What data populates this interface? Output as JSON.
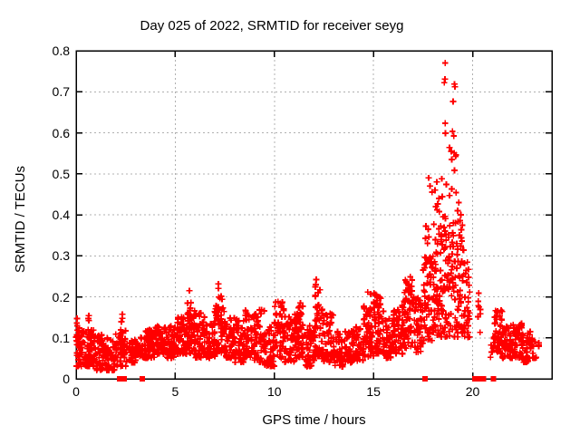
{
  "window": {
    "background": "#ffffff"
  },
  "chart_data": {
    "type": "scatter",
    "title": "Day 025 of 2022, SRMTID for receiver seyg",
    "xlabel": "GPS time / hours",
    "ylabel": "SRMTID / TECUs",
    "xlim": [
      0,
      24
    ],
    "ylim": [
      0,
      0.8
    ],
    "xticks": [
      0,
      5,
      10,
      15,
      20
    ],
    "yticks": [
      0,
      0.1,
      0.2,
      0.3,
      0.4,
      0.5,
      0.6,
      0.7,
      0.8
    ],
    "grid": true,
    "legend_position": "none",
    "marker": "plus",
    "marker_color": "#ff0000",
    "axis_color": "#000000",
    "grid_color": "#b0b0b0",
    "description": "Dense cloud of + markers between ~0.03 and ~0.2 TECUs all day, rising after hour 16 to a large spike peaking ~0.77 near hour 18.6, a sparse gap hours 20-21, and a low tail hours 21-23.4. Square markers sit at zero.",
    "cloud_bins": [
      [
        0.0,
        0.2,
        14,
        0.05,
        0.16,
        1.0
      ],
      [
        0.0,
        0.5,
        52,
        0.03,
        0.13,
        1.5
      ],
      [
        0.5,
        1.0,
        52,
        0.03,
        0.12,
        1.5
      ],
      [
        0.6,
        0.9,
        12,
        0.06,
        0.16,
        1.0
      ],
      [
        1.0,
        1.5,
        52,
        0.02,
        0.11,
        1.5
      ],
      [
        1.5,
        2.0,
        44,
        0.02,
        0.1,
        1.5
      ],
      [
        2.0,
        2.5,
        38,
        0.03,
        0.12,
        1.4
      ],
      [
        2.2,
        2.4,
        10,
        0.06,
        0.16,
        1.0
      ],
      [
        2.5,
        3.0,
        34,
        0.04,
        0.1,
        1.4
      ],
      [
        3.0,
        3.5,
        38,
        0.05,
        0.11,
        1.4
      ],
      [
        3.5,
        4.0,
        48,
        0.05,
        0.12,
        1.4
      ],
      [
        4.0,
        4.5,
        52,
        0.06,
        0.13,
        1.4
      ],
      [
        4.5,
        5.0,
        48,
        0.05,
        0.13,
        1.4
      ],
      [
        5.0,
        5.5,
        52,
        0.06,
        0.15,
        1.4
      ],
      [
        5.5,
        6.0,
        52,
        0.06,
        0.17,
        1.3
      ],
      [
        5.6,
        5.85,
        12,
        0.12,
        0.235,
        1.0
      ],
      [
        6.0,
        6.5,
        52,
        0.05,
        0.16,
        1.4
      ],
      [
        6.5,
        7.0,
        48,
        0.05,
        0.14,
        1.4
      ],
      [
        7.0,
        7.5,
        52,
        0.06,
        0.18,
        1.3
      ],
      [
        7.15,
        7.45,
        13,
        0.12,
        0.24,
        1.0
      ],
      [
        7.5,
        8.0,
        48,
        0.05,
        0.15,
        1.4
      ],
      [
        8.0,
        8.5,
        52,
        0.04,
        0.15,
        1.4
      ],
      [
        8.5,
        9.0,
        48,
        0.05,
        0.17,
        1.3
      ],
      [
        9.0,
        9.5,
        52,
        0.04,
        0.17,
        1.3
      ],
      [
        9.5,
        10.0,
        48,
        0.03,
        0.13,
        1.4
      ],
      [
        10.0,
        10.5,
        52,
        0.05,
        0.19,
        1.3
      ],
      [
        10.5,
        11.0,
        48,
        0.04,
        0.16,
        1.4
      ],
      [
        11.0,
        11.5,
        52,
        0.05,
        0.16,
        1.3
      ],
      [
        11.2,
        11.45,
        10,
        0.12,
        0.2,
        1.0
      ],
      [
        11.5,
        12.0,
        46,
        0.03,
        0.13,
        1.4
      ],
      [
        12.0,
        12.5,
        52,
        0.05,
        0.18,
        1.3
      ],
      [
        12.05,
        12.3,
        12,
        0.14,
        0.245,
        1.0
      ],
      [
        12.5,
        13.0,
        46,
        0.04,
        0.16,
        1.4
      ],
      [
        13.0,
        13.5,
        42,
        0.03,
        0.12,
        1.4
      ],
      [
        13.5,
        14.0,
        42,
        0.04,
        0.12,
        1.4
      ],
      [
        14.0,
        14.5,
        46,
        0.04,
        0.13,
        1.4
      ],
      [
        14.5,
        15.0,
        52,
        0.05,
        0.19,
        1.2
      ],
      [
        14.7,
        15.05,
        10,
        0.12,
        0.215,
        1.0
      ],
      [
        15.0,
        15.5,
        52,
        0.06,
        0.21,
        1.2
      ],
      [
        15.5,
        16.0,
        46,
        0.05,
        0.15,
        1.4
      ],
      [
        16.0,
        16.5,
        52,
        0.06,
        0.18,
        1.3
      ],
      [
        16.5,
        17.0,
        52,
        0.07,
        0.25,
        1.2
      ],
      [
        16.6,
        16.9,
        10,
        0.18,
        0.285,
        1.0
      ],
      [
        17.0,
        17.5,
        52,
        0.06,
        0.2,
        1.3
      ],
      [
        17.5,
        18.0,
        52,
        0.08,
        0.3,
        1.2
      ],
      [
        17.6,
        17.95,
        10,
        0.22,
        0.38,
        1.0
      ],
      [
        18.0,
        18.5,
        58,
        0.1,
        0.38,
        1.2
      ],
      [
        18.2,
        18.5,
        12,
        0.3,
        0.45,
        1.0
      ],
      [
        18.5,
        19.0,
        58,
        0.1,
        0.4,
        1.1
      ],
      [
        19.0,
        19.5,
        58,
        0.1,
        0.4,
        1.1
      ],
      [
        19.5,
        19.85,
        36,
        0.1,
        0.32,
        1.2
      ],
      [
        20.25,
        20.4,
        8,
        0.09,
        0.21,
        1.0
      ],
      [
        20.85,
        21.0,
        4,
        0.05,
        0.09,
        1.2
      ],
      [
        21.0,
        21.5,
        44,
        0.06,
        0.17,
        1.2
      ],
      [
        21.5,
        22.0,
        48,
        0.05,
        0.14,
        1.3
      ],
      [
        22.0,
        22.5,
        48,
        0.05,
        0.135,
        1.3
      ],
      [
        22.5,
        23.0,
        38,
        0.04,
        0.12,
        1.3
      ],
      [
        23.0,
        23.35,
        14,
        0.05,
        0.1,
        1.2
      ]
    ],
    "outliers": [
      [
        18.62,
        0.77
      ],
      [
        18.6,
        0.731
      ],
      [
        18.57,
        0.722
      ],
      [
        19.08,
        0.719
      ],
      [
        19.11,
        0.712
      ],
      [
        19.02,
        0.676
      ],
      [
        18.62,
        0.623
      ],
      [
        18.98,
        0.603
      ],
      [
        18.63,
        0.599
      ],
      [
        19.05,
        0.592
      ],
      [
        18.83,
        0.564
      ],
      [
        18.92,
        0.555
      ],
      [
        19.07,
        0.551
      ],
      [
        19.14,
        0.542
      ],
      [
        18.95,
        0.535
      ],
      [
        19.17,
        0.546
      ],
      [
        19.09,
        0.508
      ],
      [
        18.45,
        0.488
      ],
      [
        18.68,
        0.474
      ],
      [
        18.95,
        0.463
      ],
      [
        19.17,
        0.454
      ],
      [
        18.83,
        0.447
      ],
      [
        17.78,
        0.49
      ],
      [
        17.85,
        0.47
      ],
      [
        17.95,
        0.455
      ],
      [
        18.1,
        0.46
      ],
      [
        18.2,
        0.48
      ],
      [
        19.3,
        0.43
      ],
      [
        19.25,
        0.41
      ],
      [
        18.3,
        0.44
      ],
      [
        18.15,
        0.42
      ],
      [
        19.4,
        0.4
      ]
    ],
    "zero_squares": [
      2.2,
      2.43,
      3.33,
      17.6,
      20.12,
      20.3,
      20.55,
      21.05
    ]
  }
}
